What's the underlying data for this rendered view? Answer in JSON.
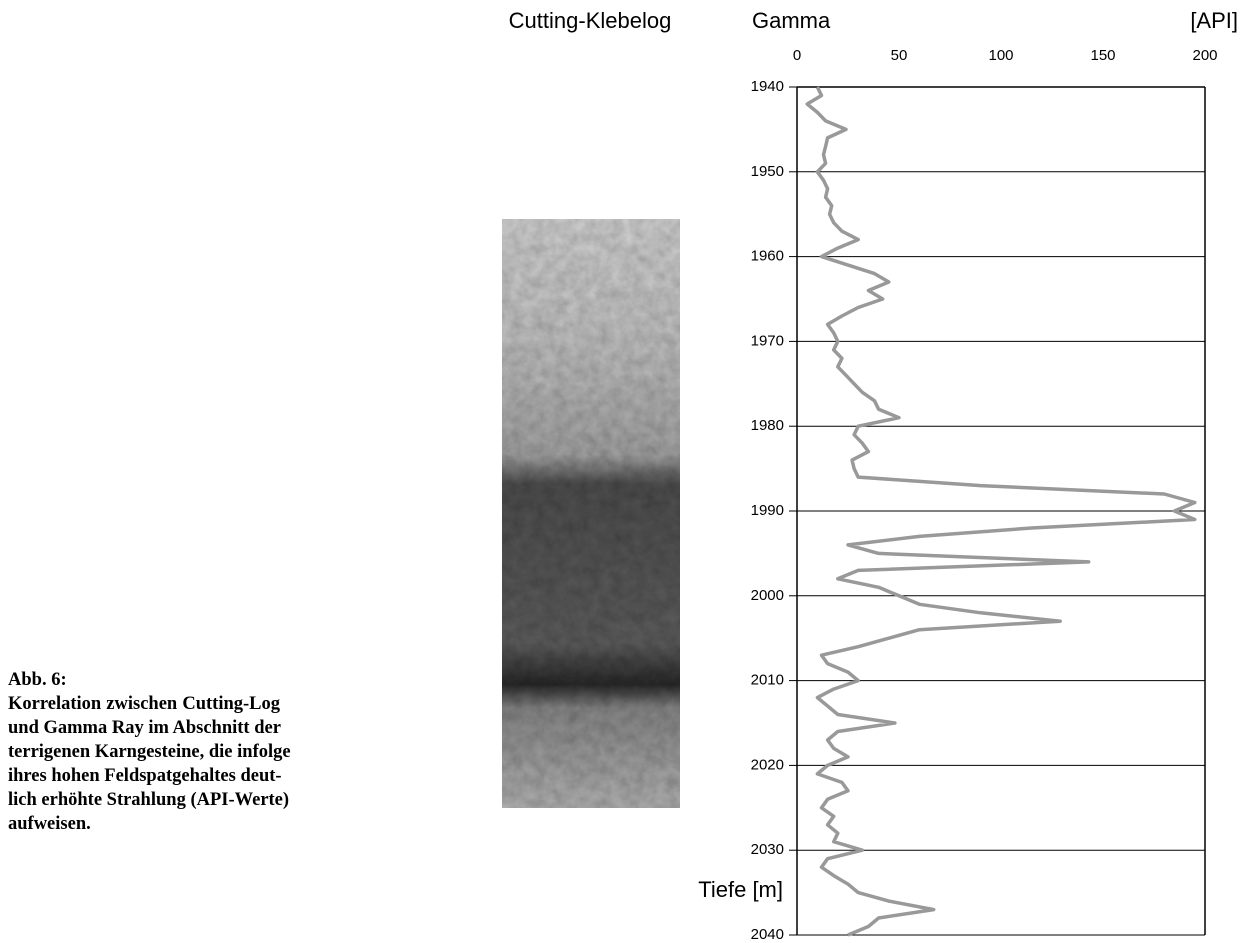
{
  "chart_data": {
    "type": "line",
    "orientation": "vertical",
    "title": "Gamma",
    "ylabel": "[API]",
    "xlabel": "Tiefe [m]",
    "image_label": "Cutting-Klebelog",
    "caption_title": "Abb. 6:",
    "caption_lines": [
      "Korrelation zwischen Cutting-Log",
      "und  Gamma Ray  im Abschnitt der",
      "terrigenen Karngesteine, die infolge",
      "ihres  hohen  Feldspatgehaltes deut-",
      "lich erhöhte Strahlung (API-Werte)",
      "aufweisen."
    ],
    "xlim": [
      1940,
      2040
    ],
    "xticks": [
      1940,
      1950,
      1960,
      1970,
      1980,
      1990,
      2000,
      2010,
      2020,
      2030,
      2040
    ],
    "ylim": [
      0,
      200
    ],
    "yticks": [
      0,
      50,
      100,
      150,
      200
    ],
    "grid": true,
    "x": [
      1940,
      1941,
      1942,
      1943,
      1944,
      1945,
      1946,
      1947,
      1948,
      1949,
      1950,
      1951,
      1952,
      1953,
      1954,
      1955,
      1956,
      1957,
      1958,
      1959,
      1960,
      1961,
      1962,
      1963,
      1964,
      1965,
      1966,
      1967,
      1968,
      1969,
      1970,
      1971,
      1972,
      1973,
      1974,
      1975,
      1976,
      1977,
      1978,
      1979,
      1980,
      1981,
      1982,
      1983,
      1984,
      1985,
      1986,
      1987,
      1988,
      1989,
      1990,
      1991,
      1992,
      1993,
      1994,
      1995,
      1996,
      1997,
      1998,
      1999,
      2000,
      2001,
      2002,
      2003,
      2004,
      2005,
      2006,
      2007,
      2008,
      2009,
      2010,
      2011,
      2012,
      2013,
      2014,
      2015,
      2016,
      2017,
      2018,
      2019,
      2020,
      2021,
      2022,
      2023,
      2024,
      2025,
      2026,
      2027,
      2028,
      2029,
      2030,
      2031,
      2032,
      2033,
      2034,
      2035,
      2036,
      2037,
      2038,
      2039,
      2040
    ],
    "series": [
      {
        "name": "Gamma",
        "color": "#999999",
        "values": [
          10,
          12,
          5,
          10,
          14,
          24,
          15,
          14,
          13,
          14,
          10,
          13,
          15,
          14,
          17,
          16,
          18,
          22,
          30,
          20,
          12,
          25,
          38,
          45,
          35,
          42,
          30,
          22,
          15,
          18,
          20,
          18,
          22,
          20,
          24,
          28,
          32,
          38,
          40,
          50,
          30,
          28,
          32,
          35,
          27,
          28,
          30,
          90,
          180,
          195,
          185,
          195,
          115,
          60,
          25,
          40,
          143,
          30,
          20,
          40,
          50,
          60,
          90,
          129,
          60,
          45,
          30,
          12,
          15,
          25,
          30,
          18,
          10,
          15,
          20,
          48,
          20,
          15,
          18,
          25,
          15,
          10,
          22,
          25,
          15,
          12,
          18,
          15,
          20,
          18,
          32,
          15,
          12,
          18,
          25,
          30,
          45,
          67,
          40,
          35,
          25
        ]
      }
    ]
  }
}
